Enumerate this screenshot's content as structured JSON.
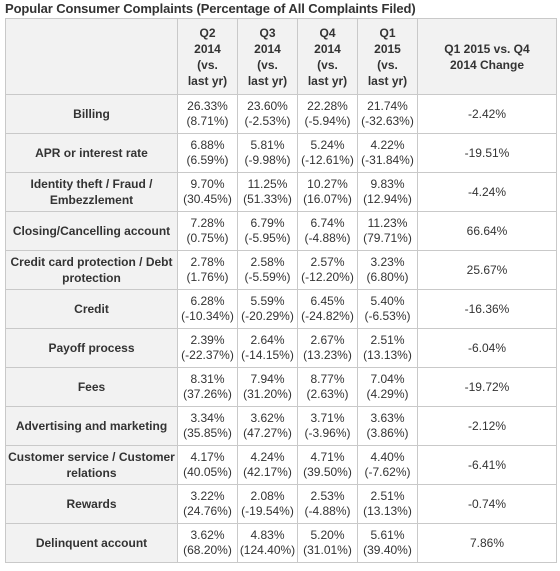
{
  "title": "Popular Consumer Complaints (Percentage of All Complaints Filed)",
  "columns": [
    {
      "key": "q2_2014",
      "lines": [
        "Q2",
        "2014",
        "(vs.",
        "last yr)"
      ]
    },
    {
      "key": "q3_2014",
      "lines": [
        "Q3",
        "2014",
        "(vs.",
        "last yr)"
      ]
    },
    {
      "key": "q4_2014",
      "lines": [
        "Q4",
        "2014",
        "(vs.",
        "last yr)"
      ]
    },
    {
      "key": "q1_2015",
      "lines": [
        "Q1",
        "2015",
        "(vs.",
        "last yr)"
      ]
    },
    {
      "key": "change",
      "lines": [
        "Q1 2015 vs. Q4",
        "2014 Change"
      ]
    }
  ],
  "rows": [
    {
      "label": "Billing",
      "values": [
        [
          "26.33%",
          "(8.71%)"
        ],
        [
          "23.60%",
          "(-2.53%)"
        ],
        [
          "22.28%",
          "(-5.94%)"
        ],
        [
          "21.74%",
          "(-32.63%)"
        ]
      ],
      "change": "-2.42%"
    },
    {
      "label": "APR or interest rate",
      "values": [
        [
          "6.88%",
          "(6.59%)"
        ],
        [
          "5.81%",
          "(-9.98%)"
        ],
        [
          "5.24%",
          "(-12.61%)"
        ],
        [
          "4.22%",
          "(-31.84%)"
        ]
      ],
      "change": "-19.51%"
    },
    {
      "label": "Identity theft / Fraud / Embezzlement",
      "values": [
        [
          "9.70%",
          "(30.45%)"
        ],
        [
          "11.25%",
          "(51.33%)"
        ],
        [
          "10.27%",
          "(16.07%)"
        ],
        [
          "9.83%",
          "(12.94%)"
        ]
      ],
      "change": "-4.24%"
    },
    {
      "label": "Closing/Cancelling account",
      "values": [
        [
          "7.28%",
          "(0.75%)"
        ],
        [
          "6.79%",
          "(-5.95%)"
        ],
        [
          "6.74%",
          "(-4.88%)"
        ],
        [
          "11.23%",
          "(79.71%)"
        ]
      ],
      "change": "66.64%"
    },
    {
      "label": "Credit card protection / Debt protection",
      "values": [
        [
          "2.78%",
          "(1.76%)"
        ],
        [
          "2.58%",
          "(-5.59%)"
        ],
        [
          "2.57%",
          "(-12.20%)"
        ],
        [
          "3.23%",
          "(6.80%)"
        ]
      ],
      "change": "25.67%"
    },
    {
      "label": "Credit",
      "values": [
        [
          "6.28%",
          "(-10.34%)"
        ],
        [
          "5.59%",
          "(-20.29%)"
        ],
        [
          "6.45%",
          "(-24.82%)"
        ],
        [
          "5.40%",
          "(-6.53%)"
        ]
      ],
      "change": "-16.36%"
    },
    {
      "label": "Payoff process",
      "values": [
        [
          "2.39%",
          "(-22.37%)"
        ],
        [
          "2.64%",
          "(-14.15%)"
        ],
        [
          "2.67%",
          "(13.23%)"
        ],
        [
          "2.51%",
          "(13.13%)"
        ]
      ],
      "change": "-6.04%"
    },
    {
      "label": "Fees",
      "values": [
        [
          "8.31%",
          "(37.26%)"
        ],
        [
          "7.94%",
          "(31.20%)"
        ],
        [
          "8.77%",
          "(2.63%)"
        ],
        [
          "7.04%",
          "(4.29%)"
        ]
      ],
      "change": "-19.72%"
    },
    {
      "label": "Advertising and marketing",
      "values": [
        [
          "3.34%",
          "(35.85%)"
        ],
        [
          "3.62%",
          "(47.27%)"
        ],
        [
          "3.71%",
          "(-3.96%)"
        ],
        [
          "3.63%",
          "(3.86%)"
        ]
      ],
      "change": "-2.12%"
    },
    {
      "label": "Customer service / Customer relations",
      "values": [
        [
          "4.17%",
          "(40.05%)"
        ],
        [
          "4.24%",
          "(42.17%)"
        ],
        [
          "4.71%",
          "(39.50%)"
        ],
        [
          "4.40%",
          "(-7.62%)"
        ]
      ],
      "change": "-6.41%"
    },
    {
      "label": "Rewards",
      "values": [
        [
          "3.22%",
          "(24.76%)"
        ],
        [
          "2.08%",
          "(-19.54%)"
        ],
        [
          "2.53%",
          "(-4.88%)"
        ],
        [
          "2.51%",
          "(13.13%)"
        ]
      ],
      "change": "-0.74%"
    },
    {
      "label": "Delinquent account",
      "values": [
        [
          "3.62%",
          "(68.20%)"
        ],
        [
          "4.83%",
          "(124.40%)"
        ],
        [
          "5.20%",
          "(31.01%)"
        ],
        [
          "5.61%",
          "(39.40%)"
        ]
      ],
      "change": "7.86%"
    }
  ]
}
